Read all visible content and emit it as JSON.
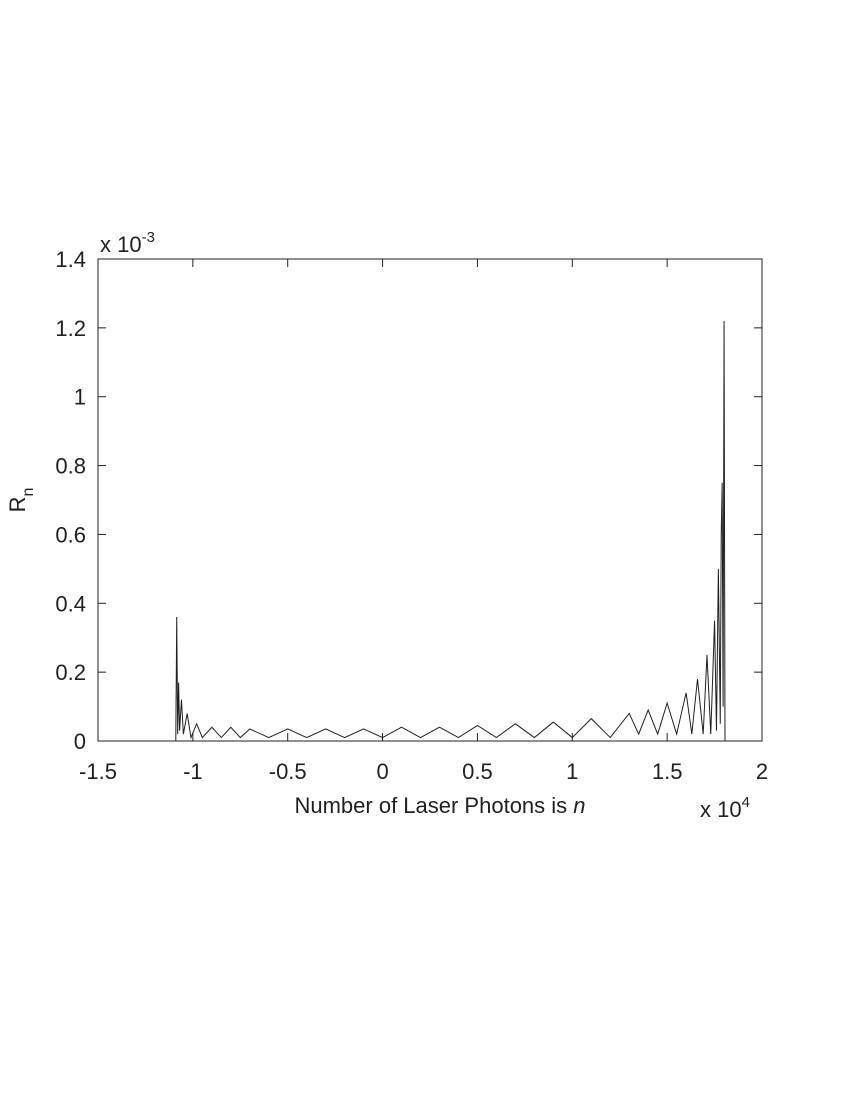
{
  "chart_data": {
    "type": "line",
    "x_label": {
      "text": "Number of Laser Photons is ",
      "variable": "n"
    },
    "y_label": {
      "text": "R",
      "subscript": "n"
    },
    "x_multiplier": {
      "base": "x 10",
      "exponent": "4"
    },
    "y_multiplier": {
      "base": "x 10",
      "exponent": "-3"
    },
    "xlim": [
      -1.5,
      2
    ],
    "xticks": [
      -1.5,
      -1,
      -0.5,
      0,
      0.5,
      1,
      1.5,
      2
    ],
    "ylim": [
      0,
      1.4
    ],
    "yticks": [
      0,
      0.2,
      0.4,
      0.6,
      0.8,
      1,
      1.2,
      1.4
    ],
    "series": [
      {
        "color": "#231f20",
        "x": [
          -1.09,
          -1.085,
          -1.08,
          -1.075,
          -1.07,
          -1.06,
          -1.05,
          -1.03,
          -1.01,
          -0.98,
          -0.95,
          -0.9,
          -0.85,
          -0.8,
          -0.75,
          -0.7,
          -0.6,
          -0.5,
          -0.4,
          -0.3,
          -0.2,
          -0.1,
          0,
          0.1,
          0.2,
          0.3,
          0.4,
          0.5,
          0.6,
          0.7,
          0.8,
          0.9,
          1.0,
          1.1,
          1.2,
          1.3,
          1.35,
          1.4,
          1.45,
          1.5,
          1.55,
          1.6,
          1.63,
          1.66,
          1.69,
          1.71,
          1.73,
          1.75,
          1.76,
          1.77,
          1.78,
          1.785,
          1.79,
          1.795,
          1.8,
          1.805
        ],
        "values": [
          0,
          0.36,
          0.02,
          0.17,
          0.03,
          0.12,
          0.02,
          0.08,
          0.01,
          0.05,
          0.01,
          0.04,
          0.01,
          0.04,
          0.01,
          0.035,
          0.01,
          0.035,
          0.01,
          0.035,
          0.01,
          0.035,
          0.01,
          0.04,
          0.01,
          0.04,
          0.01,
          0.045,
          0.01,
          0.05,
          0.01,
          0.055,
          0.01,
          0.065,
          0.01,
          0.08,
          0.02,
          0.09,
          0.02,
          0.11,
          0.02,
          0.14,
          0.02,
          0.18,
          0.02,
          0.25,
          0.02,
          0.35,
          0.03,
          0.5,
          0.05,
          0.6,
          0.75,
          0.1,
          1.22,
          0
        ]
      }
    ]
  }
}
